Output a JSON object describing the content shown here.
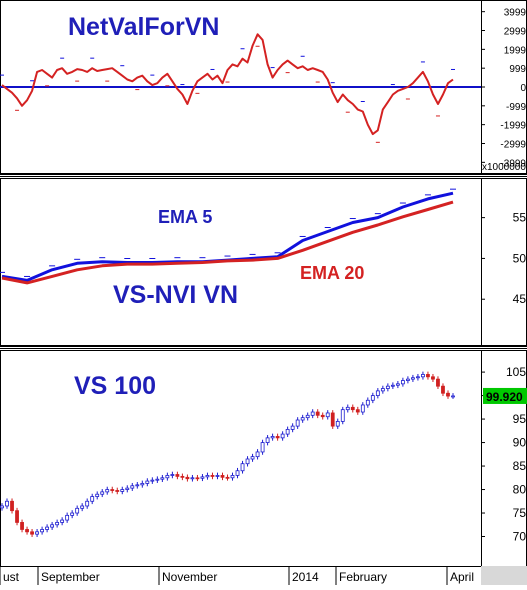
{
  "colors": {
    "background": "#ffffff",
    "panel_border": "#000000",
    "axis_text": "#000000",
    "navy": "#1f1fb8",
    "red": "#d42222",
    "blue": "#1111dd",
    "zero_line": "#1010c8",
    "bull": "#1c1cd0",
    "bear": "#d02020",
    "price_tag_bg": "#00c800",
    "bottom_bar": "#d8d8d8"
  },
  "chart_data": [
    {
      "type": "line",
      "title": "NetValForVN",
      "y_unit_label": "x1000000",
      "ylim": [
        -4300,
        4300
      ],
      "y_ticks": [
        "3999",
        "2999",
        "1999",
        "999",
        "0",
        "-999",
        "-1999",
        "-2999",
        "-3999"
      ],
      "y_tick_values": [
        3999,
        2999,
        1999,
        999,
        0,
        -999,
        -1999,
        -2999,
        -3999
      ],
      "x": [
        0,
        2,
        4,
        6,
        8,
        10,
        12,
        14,
        16,
        18,
        20,
        22,
        24,
        26,
        28,
        30,
        32,
        34,
        36,
        38,
        40,
        42,
        44,
        46,
        48,
        50,
        52,
        54,
        56,
        58,
        60,
        62,
        64,
        66,
        68,
        70,
        72,
        74,
        76,
        78,
        80,
        82,
        84,
        86,
        88,
        90,
        92,
        94,
        96,
        98,
        100,
        102,
        104,
        106,
        108,
        110,
        112,
        114,
        116,
        118,
        120,
        122,
        124,
        126,
        128,
        130,
        132,
        134,
        136,
        138,
        140,
        142,
        144,
        146,
        148,
        150,
        152,
        154,
        156,
        158,
        160,
        162,
        164,
        166,
        168,
        170,
        172,
        174,
        176,
        178,
        180
      ],
      "series": [
        {
          "values": [
            100,
            -100,
            -300,
            -600,
            -1000,
            -700,
            -200,
            800,
            900,
            700,
            500,
            900,
            1000,
            700,
            800,
            950,
            900,
            800,
            1000,
            850,
            900,
            950,
            1000,
            800,
            600,
            400,
            300,
            500,
            600,
            300,
            100,
            200,
            500,
            700,
            300,
            -100,
            -400,
            -900,
            -200,
            300,
            500,
            700,
            400,
            600,
            200,
            900,
            1200,
            1100,
            1500,
            1300,
            2200,
            2800,
            2500,
            1200,
            500,
            900,
            1200,
            1400,
            1200,
            1000,
            1100,
            900,
            1000,
            900,
            800,
            400,
            -300,
            -800,
            -400,
            -700,
            -900,
            -1200,
            -1300,
            -2000,
            -2500,
            -2300,
            -1200,
            -800,
            -400,
            -200,
            -100,
            0,
            200,
            500,
            800,
            300,
            -400,
            -900,
            -400,
            200,
            400
          ]
        }
      ]
    },
    {
      "type": "line",
      "title": "VS-NVI VN",
      "ylim": [
        40,
        59
      ],
      "y_ticks": [
        "55",
        "50",
        "45"
      ],
      "y_tick_values": [
        55,
        50,
        45
      ],
      "x": [
        0,
        10,
        20,
        30,
        40,
        50,
        60,
        70,
        80,
        90,
        100,
        110,
        120,
        130,
        140,
        150,
        160,
        170,
        180
      ],
      "series": [
        {
          "name": "EMA 5",
          "values": [
            47.8,
            47.3,
            48.6,
            49.4,
            49.6,
            49.5,
            49.5,
            49.6,
            49.6,
            49.8,
            50.0,
            50.2,
            52.2,
            53.3,
            54.4,
            55.0,
            56.3,
            57.3,
            58.0
          ]
        },
        {
          "name": "EMA 20",
          "values": [
            47.6,
            47.0,
            47.8,
            48.6,
            49.1,
            49.3,
            49.3,
            49.4,
            49.5,
            49.7,
            49.8,
            50.0,
            51.0,
            52.1,
            53.2,
            54.1,
            55.1,
            56.0,
            56.9
          ]
        }
      ]
    },
    {
      "type": "candlestick",
      "title": "VS 100",
      "ylim": [
        65,
        108
      ],
      "y_ticks": [
        "105",
        "100",
        "95",
        "90",
        "85",
        "80",
        "75",
        "70"
      ],
      "y_tick_values": [
        105,
        100,
        95,
        90,
        85,
        80,
        75,
        70
      ],
      "last_price": "99.920",
      "x": [
        0,
        2,
        4,
        6,
        8,
        10,
        12,
        14,
        16,
        18,
        20,
        22,
        24,
        26,
        28,
        30,
        32,
        34,
        36,
        38,
        40,
        42,
        44,
        46,
        48,
        50,
        52,
        54,
        56,
        58,
        60,
        62,
        64,
        66,
        68,
        70,
        72,
        74,
        76,
        78,
        80,
        82,
        84,
        86,
        88,
        90,
        92,
        94,
        96,
        98,
        100,
        102,
        104,
        106,
        108,
        110,
        112,
        114,
        116,
        118,
        120,
        122,
        124,
        126,
        128,
        130,
        132,
        134,
        136,
        138,
        140,
        142,
        144,
        146,
        148,
        150,
        152,
        154,
        156,
        158,
        160,
        162,
        164,
        166,
        168,
        170,
        172,
        174,
        176,
        178,
        180
      ],
      "series": [
        {
          "name": "close",
          "values": [
            76.5,
            77.5,
            75.5,
            73,
            71.5,
            71,
            70.5,
            71,
            71.5,
            72,
            72.5,
            73,
            73.5,
            74.5,
            75,
            76,
            76.5,
            77.5,
            78.5,
            79,
            79.5,
            80,
            79.8,
            79.6,
            80,
            80.3,
            80.8,
            81,
            81.3,
            81.8,
            82,
            82.2,
            82.5,
            83,
            83.2,
            82.8,
            82.6,
            82.3,
            82.5,
            82.4,
            82.7,
            83,
            82.8,
            83,
            82.6,
            82.5,
            83,
            84,
            85.5,
            86.5,
            87,
            88,
            90,
            91,
            91.3,
            91,
            91.8,
            92.8,
            93.5,
            94.8,
            95.3,
            95.8,
            96.5,
            95.8,
            95.5,
            96.3,
            93.5,
            94.5,
            97,
            97.5,
            97,
            96.5,
            98,
            99,
            100,
            101,
            101.5,
            102,
            102.2,
            102.5,
            103.2,
            103.5,
            103.8,
            104,
            104.5,
            104,
            103.5,
            102,
            100.5,
            99.9,
            99.92
          ]
        }
      ]
    }
  ],
  "x_axis": {
    "labels": [
      "ust",
      "September",
      "November",
      "2014",
      "February",
      "April"
    ],
    "positions": [
      0,
      38,
      159,
      289,
      336,
      447
    ]
  }
}
